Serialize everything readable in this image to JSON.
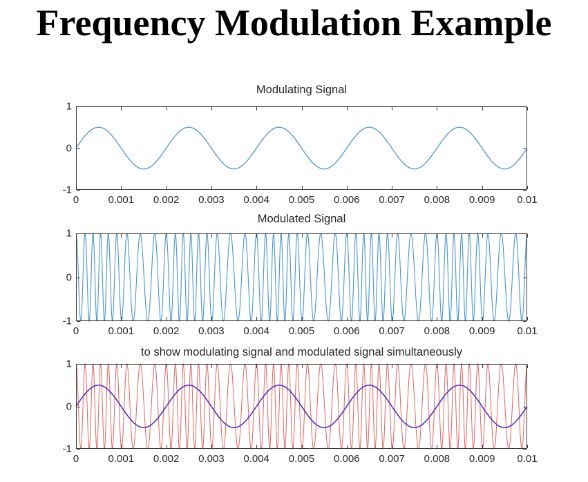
{
  "main_title": "Frequency Modulation Example",
  "axis_style": {
    "frame_color": "#3A3A3A",
    "tick_color": "#3A3A3A",
    "label_color": "#262626",
    "background": "#ffffff"
  },
  "chart_data": [
    {
      "type": "line",
      "title": "Modulating Signal",
      "xlabel": "",
      "ylabel": "",
      "xlim": [
        0,
        0.01
      ],
      "ylim": [
        -1,
        1
      ],
      "grid": false,
      "legend": "none",
      "xtick_labels": [
        "0",
        "0.001",
        "0.002",
        "0.003",
        "0.004",
        "0.005",
        "0.006",
        "0.007",
        "0.008",
        "0.009",
        "0.01"
      ],
      "xtick_values": [
        0,
        0.001,
        0.002,
        0.003,
        0.004,
        0.005,
        0.006,
        0.007,
        0.008,
        0.009,
        0.01
      ],
      "ytick_labels": [
        "1",
        "0",
        "-1"
      ],
      "ytick_values": [
        1,
        0,
        -1
      ],
      "series": [
        {
          "name": "modulating-signal",
          "kind": "sine",
          "formula": "0.5*sin(2*pi*500*t)",
          "amplitude": 0.5,
          "frequency_hz": 500,
          "color": "#4A94CC",
          "line_width": 1.3
        }
      ]
    },
    {
      "type": "line",
      "title": "Modulated Signal",
      "xlabel": "",
      "ylabel": "",
      "xlim": [
        0,
        0.01
      ],
      "ylim": [
        -1,
        1
      ],
      "grid": false,
      "legend": "none",
      "xtick_labels": [
        "0",
        "0.001",
        "0.002",
        "0.003",
        "0.004",
        "0.005",
        "0.006",
        "0.007",
        "0.008",
        "0.009",
        "0.01"
      ],
      "xtick_values": [
        0,
        0.001,
        0.002,
        0.003,
        0.004,
        0.005,
        0.006,
        0.007,
        0.008,
        0.009,
        0.01
      ],
      "ytick_labels": [
        "1",
        "0",
        "-1"
      ],
      "ytick_values": [
        1,
        0,
        -1
      ],
      "series": [
        {
          "name": "fm-modulated-signal",
          "kind": "fm",
          "formula": "cos(2*pi*4500*t + 3*(1-cos(2*pi*500*t)))",
          "amplitude": 1,
          "carrier_frequency_hz": 4500,
          "peak_deviation_hz": 1500,
          "modulating_frequency_hz": 500,
          "color": "#4A94CC",
          "line_width": 1.1
        }
      ]
    },
    {
      "type": "line",
      "title": "to show modulating signal and modulated signal simultaneously",
      "xlabel": "",
      "ylabel": "",
      "xlim": [
        0,
        0.01
      ],
      "ylim": [
        -1,
        1
      ],
      "grid": false,
      "legend": "none",
      "xtick_labels": [
        "0",
        "0.001",
        "0.002",
        "0.003",
        "0.004",
        "0.005",
        "0.006",
        "0.007",
        "0.008",
        "0.009",
        "0.01"
      ],
      "xtick_values": [
        0,
        0.001,
        0.002,
        0.003,
        0.004,
        0.005,
        0.006,
        0.007,
        0.008,
        0.009,
        0.01
      ],
      "ytick_labels": [
        "1",
        "0",
        "-1"
      ],
      "ytick_values": [
        1,
        0,
        -1
      ],
      "series": [
        {
          "name": "fm-modulated-signal",
          "kind": "fm",
          "formula": "cos(2*pi*4500*t + 3*(1-cos(2*pi*500*t)))",
          "amplitude": 1,
          "carrier_frequency_hz": 4500,
          "peak_deviation_hz": 1500,
          "modulating_frequency_hz": 500,
          "color": "#E06262",
          "line_width": 1.0
        },
        {
          "name": "modulating-signal",
          "kind": "sine",
          "formula": "0.5*sin(2*pi*500*t)",
          "amplitude": 0.5,
          "frequency_hz": 500,
          "color": "#5230BE",
          "line_width": 1.6
        }
      ]
    }
  ]
}
